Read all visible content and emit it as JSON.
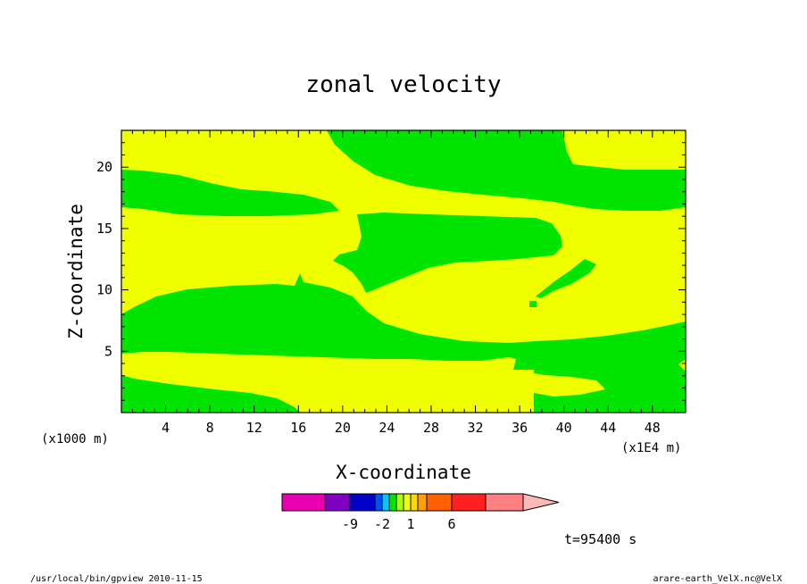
{
  "chart_data": {
    "type": "heatmap",
    "title": "zonal velocity",
    "xlabel": "X-coordinate",
    "ylabel": "Z-coordinate",
    "x_unit": "(x1E4 m)",
    "y_unit": "(x1000 m)",
    "x_ticks": [
      "4",
      "8",
      "12",
      "16",
      "20",
      "24",
      "28",
      "32",
      "36",
      "40",
      "44",
      "48"
    ],
    "y_ticks": [
      "5",
      "10",
      "15",
      "20"
    ],
    "xlim": [
      0,
      51
    ],
    "ylim": [
      0,
      23
    ],
    "time_label": "t=95400 s",
    "colors": {
      "positive": "#f0ff00",
      "negative": "#00e400",
      "frame": "#000000"
    },
    "colorbar": {
      "labels": [
        "-9",
        "-2",
        "1",
        "6"
      ],
      "colors": [
        "#e800b0",
        "#8000c0",
        "#0000c8",
        "#0050ff",
        "#00c8ff",
        "#00e400",
        "#aaff00",
        "#f0ff00",
        "#ffd800",
        "#ffa000",
        "#ff6000",
        "#ff2020",
        "#ff8080",
        "#ffb8b8"
      ]
    }
  },
  "footer": {
    "left": "/usr/local/bin/gpview  2010-11-15",
    "right": "arare-earth_VelX.nc@VelX"
  }
}
